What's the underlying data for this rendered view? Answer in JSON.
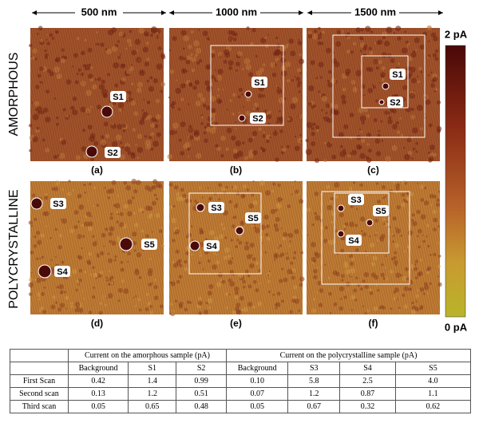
{
  "figure": {
    "columns": [
      "500 nm",
      "1000 nm",
      "1500 nm"
    ],
    "rows": [
      "AMORPHOUS",
      "POLYCRYSTALLINE"
    ],
    "panels": [
      {
        "label": "(a)",
        "spots": [
          "S1",
          "S2"
        ]
      },
      {
        "label": "(b)",
        "spots": [
          "S1",
          "S2"
        ]
      },
      {
        "label": "(c)",
        "spots": [
          "S1",
          "S2"
        ]
      },
      {
        "label": "(d)",
        "spots": [
          "S3",
          "S5",
          "S4"
        ]
      },
      {
        "label": "(e)",
        "spots": [
          "S3",
          "S5",
          "S4"
        ]
      },
      {
        "label": "(f)",
        "spots": [
          "S3",
          "S5",
          "S4"
        ]
      }
    ],
    "colorbar": {
      "max_label": "2 pA",
      "min_label": "0 pA"
    }
  },
  "table": {
    "groups": [
      "Current on the amorphous sample (pA)",
      "Current on the polycrystalline sample (pA)"
    ],
    "subheaders": [
      "Background",
      "S1",
      "S2",
      "Background",
      "S3",
      "S4",
      "S5"
    ],
    "rows": [
      [
        "First Scan",
        "0.42",
        "1.4",
        "0.99",
        "0.10",
        "5.8",
        "2.5",
        "4.0"
      ],
      [
        "Second scan",
        "0.13",
        "1.2",
        "0.51",
        "0.07",
        "1.2",
        "0.87",
        "1.1"
      ],
      [
        "Third scan",
        "0.05",
        "0.65",
        "0.48",
        "0.05",
        "0.67",
        "0.32",
        "0.62"
      ]
    ]
  }
}
